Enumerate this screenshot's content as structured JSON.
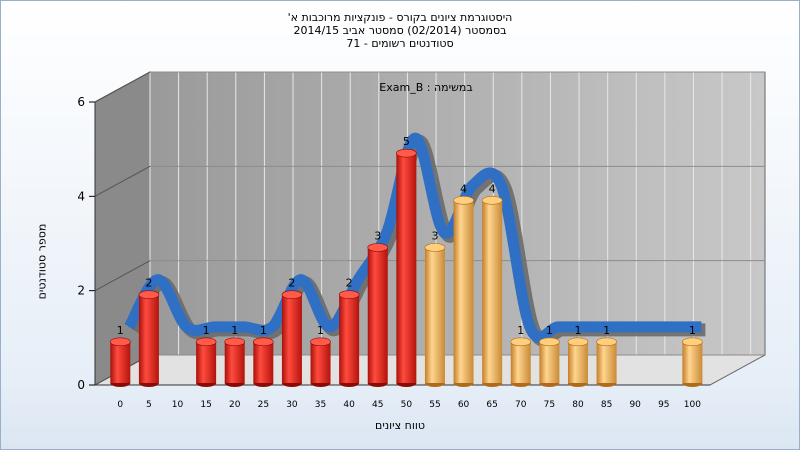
{
  "chart": {
    "title_lines": [
      "היסטוגרמת ציונים בקורס - פונקציות מרוכבות א'",
      "בסמסטר  (02/2014)  סמסטר אביב 2014/15",
      "סטודנטים רשומים - 71"
    ],
    "annotation": "במשימה : Exam_B",
    "ylabel": "מספר סטודנטים",
    "xlabel": "טווח ציונים"
  },
  "colors": {
    "fail_bar": "#e2231a",
    "pass_bar": "#f0b45c",
    "curve": "#2f6fc4",
    "curve_back": "#6a6a6a",
    "back_wall": "#c8c8c8",
    "side_wall": "#8a8a8a"
  },
  "chart_data": {
    "type": "bar",
    "title": "היסטוגרמת ציונים בקורס - פונקציות מרוכבות א'",
    "xlabel": "טווח ציונים",
    "ylabel": "מספר סטודנטים",
    "ylim": [
      0,
      6
    ],
    "yticks": [
      0,
      2,
      4,
      6
    ],
    "categories": [
      "0",
      "5",
      "10",
      "15",
      "20",
      "25",
      "30",
      "35",
      "40",
      "45",
      "50",
      "55",
      "60",
      "65",
      "70",
      "75",
      "80",
      "85",
      "90",
      "95",
      "100"
    ],
    "values": [
      1,
      2,
      0,
      1,
      1,
      1,
      2,
      1,
      2,
      3,
      5,
      3,
      4,
      4,
      1,
      1,
      1,
      1,
      0,
      0,
      1
    ],
    "pass_from_category": "55",
    "grid": true,
    "has_smoothed_curve": true
  }
}
